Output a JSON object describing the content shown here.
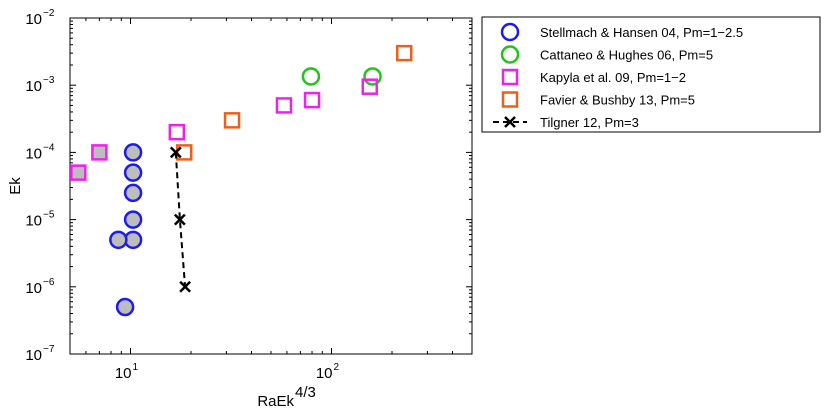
{
  "chart_data": {
    "type": "scatter",
    "xlabel": "RaEk",
    "xlabel_sup": "4/3",
    "ylabel": "Ek",
    "xscale": "log",
    "yscale": "log",
    "xlim": [
      5,
      500
    ],
    "ylim": [
      1e-07,
      0.01
    ],
    "grid": false,
    "legend_position": "outside-top-right",
    "x_ticks": [
      {
        "value": 10,
        "base": "10",
        "exp": "1"
      },
      {
        "value": 100,
        "base": "10",
        "exp": "2"
      }
    ],
    "y_ticks": [
      {
        "value": 1e-07,
        "base": "10",
        "exp": "−7"
      },
      {
        "value": 1e-06,
        "base": "10",
        "exp": "−6"
      },
      {
        "value": 1e-05,
        "base": "10",
        "exp": "−5"
      },
      {
        "value": 0.0001,
        "base": "10",
        "exp": "−4"
      },
      {
        "value": 0.001,
        "base": "10",
        "exp": "−3"
      },
      {
        "value": 0.01,
        "base": "10",
        "exp": "−2"
      }
    ],
    "series": [
      {
        "name": "Stellmach & Hansen 04, Pm=1−2.5",
        "marker": "circle",
        "color": "#1c1cf0",
        "points": [
          [
            10.3,
            0.0001
          ],
          [
            10.3,
            5e-05
          ],
          [
            10.3,
            2.5e-05
          ],
          [
            10.3,
            1e-05
          ],
          [
            10.3,
            5e-06
          ],
          [
            8.7,
            5e-06
          ],
          [
            9.4,
            5e-07
          ]
        ],
        "filled": [
          true,
          true,
          true,
          true,
          true,
          true,
          true
        ]
      },
      {
        "name": "Cattaneo & Hughes 06, Pm=5",
        "marker": "circle",
        "color": "#22c41a",
        "points": [
          [
            79,
            0.00135
          ],
          [
            160,
            0.00135
          ]
        ],
        "filled": [
          false,
          false
        ]
      },
      {
        "name": "Kapyla et al. 09, Pm=1−2",
        "marker": "square",
        "color": "#ee22ee",
        "points": [
          [
            5.5,
            5e-05
          ],
          [
            7,
            0.0001
          ],
          [
            17,
            0.0002
          ],
          [
            58,
            0.0005
          ],
          [
            80,
            0.0006
          ],
          [
            155,
            0.00095
          ]
        ],
        "filled": [
          true,
          true,
          false,
          false,
          false,
          false
        ]
      },
      {
        "name": "Favier & Bushby 13, Pm=5",
        "marker": "square",
        "color": "#ee5f1a",
        "points": [
          [
            18.5,
            0.0001
          ],
          [
            32,
            0.0003
          ],
          [
            230,
            0.003
          ]
        ],
        "filled": [
          false,
          false,
          false
        ]
      },
      {
        "name": "Tilgner 12, Pm=3",
        "marker": "x",
        "color": "#000000",
        "line": "dashed",
        "points": [
          [
            16.8,
            0.0001
          ],
          [
            17.6,
            1e-05
          ],
          [
            18.7,
            1e-06
          ]
        ],
        "filled": [
          false,
          false,
          false
        ]
      }
    ]
  }
}
